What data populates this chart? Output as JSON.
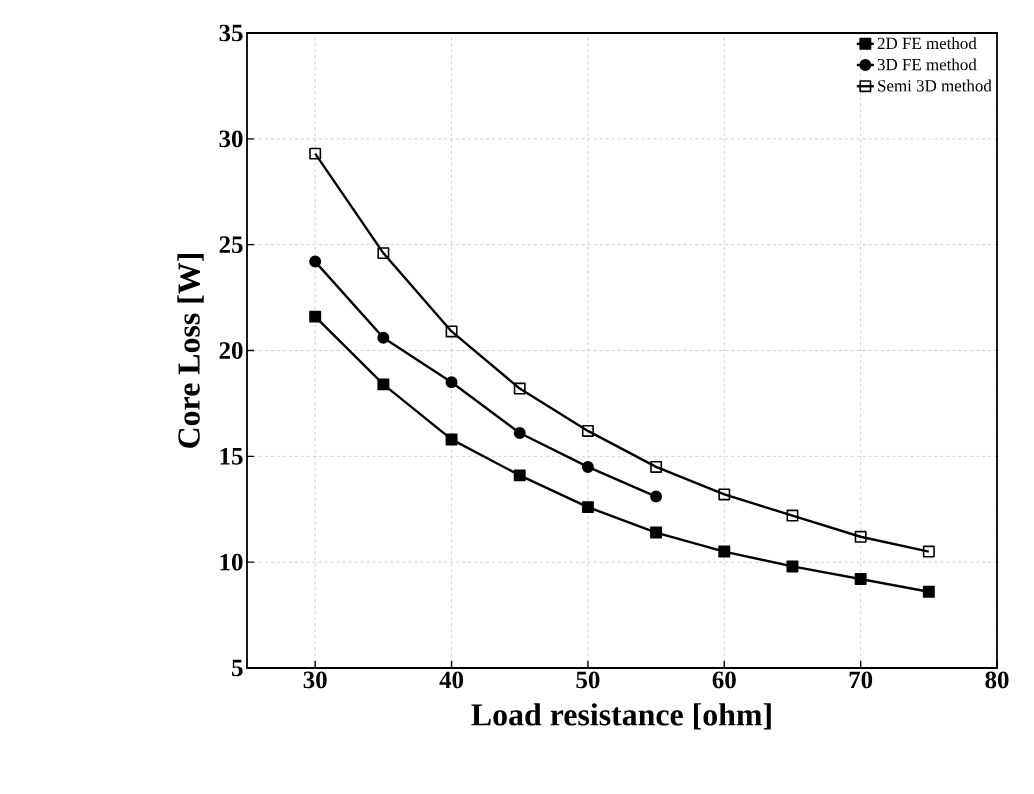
{
  "chart_data": {
    "type": "line",
    "xlabel": "Load resistance [ohm]",
    "ylabel": "Core Loss [W]",
    "x": [
      30,
      35,
      40,
      45,
      50,
      55,
      60,
      65,
      70,
      75
    ],
    "series": [
      {
        "name": "2D FE method",
        "color": "#000000",
        "marker": "square",
        "values": [
          21.6,
          18.4,
          15.8,
          14.1,
          12.6,
          11.4,
          10.5,
          9.8,
          9.2,
          8.6
        ]
      },
      {
        "name": "3D FE method",
        "color": "#000000",
        "marker": "circle",
        "values": [
          24.2,
          20.6,
          18.5,
          16.1,
          14.5,
          13.1,
          null,
          null,
          null,
          null
        ]
      },
      {
        "name": "Semi 3D method",
        "color": "#000000",
        "marker": "square-open",
        "values": [
          29.3,
          24.6,
          20.9,
          18.2,
          16.2,
          14.5,
          13.2,
          12.2,
          11.2,
          10.5
        ]
      }
    ],
    "xlim": [
      25,
      80
    ],
    "xticks": [
      30,
      40,
      50,
      60,
      70,
      80
    ],
    "ylim": [
      5,
      35
    ],
    "yticks": [
      5,
      10,
      15,
      20,
      25,
      30,
      35
    ],
    "grid": true,
    "legend": "top right",
    "line_style": "solid"
  }
}
